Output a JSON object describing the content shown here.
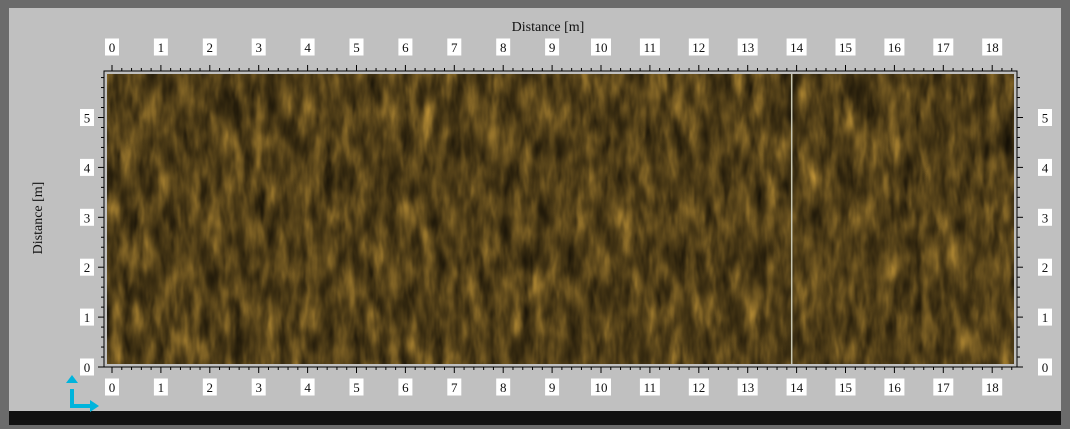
{
  "chart_data": {
    "type": "heatmap",
    "title": "",
    "xlabel": "Distance [m]",
    "ylabel": "Distance [m]",
    "xlim": [
      0,
      18.6
    ],
    "ylim": [
      0,
      5.9
    ],
    "x_ticks": [
      "0",
      "1",
      "2",
      "3",
      "4",
      "5",
      "6",
      "7",
      "8",
      "9",
      "10",
      "11",
      "12",
      "13",
      "14",
      "15",
      "16",
      "17",
      "18"
    ],
    "y_ticks": [
      "0",
      "1",
      "2",
      "3",
      "4",
      "5"
    ],
    "x_marker_line": 13.9,
    "colormap": [
      "#a87a1e",
      "#c89a3a",
      "#e8d470"
    ],
    "grid": false,
    "legend": "none"
  },
  "colors": {
    "frame": "#6b6b6b",
    "panel": "#c0c0c0",
    "label_box": "#ffffff",
    "axis_icon": "#00b4dc"
  },
  "icons": {
    "axis_orientation": "axis-arrows-icon"
  }
}
